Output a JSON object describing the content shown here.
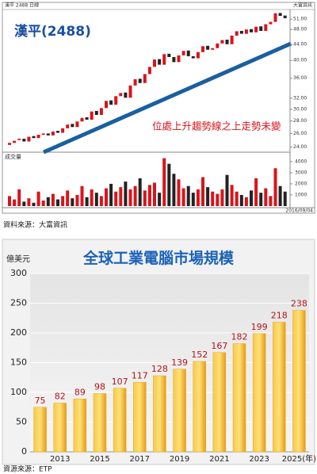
{
  "chart_data": [
    {
      "type": "candlestick",
      "title": "漢平(2488)",
      "header": "漢平 2488 日線",
      "provider": "大富資訊",
      "annotation": "位處上升趨勢線之上走勢未變",
      "volume_label": "成交量",
      "date_label": "2016/09/04",
      "source": "資料來源：大富資訊",
      "log_scale": true,
      "up_color": "#d9141b",
      "down_color": "#222222",
      "volume_up_color": "#d9141b",
      "volume_down_color": "#222222",
      "ylim": [
        23.5,
        54
      ],
      "yticks": [
        {
          "value": 51,
          "label": "51.00"
        },
        {
          "value": 48,
          "label": "48.00"
        },
        {
          "value": 44,
          "label": "44.00"
        },
        {
          "value": 40,
          "label": "40.00"
        },
        {
          "value": 36,
          "label": "36.00"
        },
        {
          "value": 32,
          "label": "32.00"
        },
        {
          "value": 30,
          "label": "30.00"
        },
        {
          "value": 28,
          "label": "28.00"
        },
        {
          "value": 26,
          "label": "26.00"
        },
        {
          "value": 24,
          "label": "24.00"
        }
      ],
      "open": [
        24.3,
        24.6,
        25.0,
        25.2,
        24.8,
        25.6,
        25.3,
        25.8,
        26.0,
        25.7,
        26.4,
        26.1,
        26.8,
        27.5,
        27.0,
        27.9,
        28.6,
        28.2,
        29.7,
        29.0,
        30.2,
        31.6,
        30.8,
        32.4,
        33.1,
        32.1,
        34.5,
        35.9,
        35.0,
        36.9,
        38.5,
        40.3,
        39.0,
        41.6,
        40.8,
        39.6,
        41.2,
        42.4,
        41.0,
        40.5,
        42.0,
        43.6,
        42.6,
        43.0,
        44.2,
        45.2,
        44.0,
        46.3,
        47.6,
        46.8,
        48.1,
        47.2,
        48.9,
        47.6,
        49.5,
        50.2,
        52.9,
        52.1
      ],
      "close": [
        24.6,
        24.9,
        25.2,
        24.8,
        25.5,
        25.3,
        25.8,
        26.0,
        25.7,
        26.3,
        26.1,
        26.8,
        27.4,
        27.0,
        27.9,
        28.5,
        28.2,
        29.6,
        29.0,
        30.2,
        31.5,
        30.8,
        32.4,
        33.0,
        32.1,
        34.5,
        35.8,
        35.0,
        36.9,
        38.5,
        40.2,
        39.0,
        41.5,
        40.8,
        39.6,
        41.2,
        42.3,
        41.0,
        40.5,
        42.0,
        43.5,
        42.6,
        43.0,
        44.2,
        45.1,
        44.0,
        46.3,
        47.5,
        46.8,
        48.0,
        47.2,
        48.8,
        47.6,
        49.5,
        50.2,
        52.8,
        52.0,
        51.3
      ],
      "volume": [
        900,
        600,
        1500,
        400,
        700,
        300,
        1300,
        500,
        800,
        1100,
        600,
        900,
        1400,
        700,
        1000,
        1800,
        800,
        1500,
        1200,
        900,
        1600,
        2000,
        1300,
        1700,
        2200,
        1500,
        1800,
        2500,
        1400,
        1900,
        2100,
        1200,
        4300,
        3800,
        2900,
        2400,
        1600,
        1800,
        1200,
        1500,
        2600,
        1700,
        1300,
        1100,
        1500,
        2800,
        1900,
        1300,
        1000,
        800,
        1400,
        2500,
        1200,
        1600,
        900,
        3400,
        1800,
        1300
      ],
      "volume_ylim": [
        0,
        4700
      ],
      "volume_ticks": [
        1000,
        2000,
        3000,
        4000
      ]
    },
    {
      "type": "bar",
      "title": "全球工業電腦市場規模",
      "y_label": "億美元",
      "source": "資源來源：ETP",
      "color": "#f2a818",
      "label_color": "#b0141a",
      "categories": [
        null,
        "2013",
        null,
        "2015",
        null,
        "2017",
        null,
        "2019",
        null,
        "2021",
        null,
        "2023",
        null,
        "2025(年)"
      ],
      "values": [
        75,
        82,
        89,
        98,
        107,
        117,
        128,
        139,
        152,
        167,
        182,
        199,
        218,
        238
      ],
      "ylim": [
        0,
        300
      ],
      "yticks": [
        0,
        50,
        100,
        150,
        200,
        250,
        300
      ],
      "grid": true
    }
  ]
}
